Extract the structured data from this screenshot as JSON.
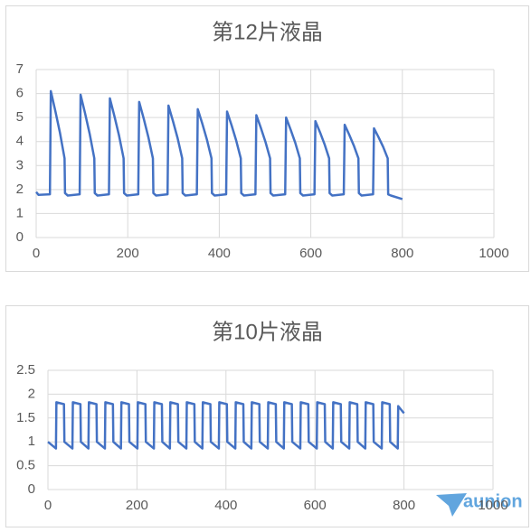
{
  "chart_data": [
    {
      "type": "line",
      "title": "第12片液晶",
      "x": [
        0,
        5,
        30,
        32,
        42,
        52,
        62,
        63,
        69,
        95,
        97,
        107,
        117,
        127,
        128,
        134,
        159,
        161,
        171,
        181,
        191,
        192,
        198,
        223,
        225,
        235,
        245,
        255,
        256,
        262,
        287,
        289,
        299,
        309,
        319,
        320,
        326,
        351,
        353,
        363,
        373,
        383,
        384,
        390,
        415,
        417,
        427,
        437,
        447,
        448,
        454,
        479,
        481,
        491,
        501,
        511,
        512,
        518,
        544,
        546,
        556,
        566,
        576,
        577,
        583,
        608,
        610,
        620,
        630,
        640,
        641,
        647,
        672,
        674,
        684,
        694,
        704,
        705,
        711,
        736,
        738,
        748,
        758,
        768,
        769,
        775,
        800
      ],
      "series": [
        {
          "color": "#4472c4",
          "values": [
            1.9,
            1.78,
            1.8,
            6.1,
            5.26,
            4.36,
            3.3,
            1.85,
            1.75,
            1.8,
            5.95,
            5.16,
            4.31,
            3.3,
            1.85,
            1.75,
            1.8,
            5.8,
            5.05,
            4.25,
            3.3,
            1.85,
            1.75,
            1.8,
            5.65,
            4.95,
            4.19,
            3.3,
            1.85,
            1.75,
            1.8,
            5.5,
            4.84,
            4.14,
            3.3,
            1.85,
            1.75,
            1.8,
            5.35,
            4.74,
            4.08,
            3.3,
            1.85,
            1.75,
            1.8,
            5.25,
            4.67,
            4.04,
            3.3,
            1.85,
            1.75,
            1.8,
            5.1,
            4.56,
            3.98,
            3.3,
            1.85,
            1.75,
            1.8,
            5.0,
            4.49,
            3.95,
            3.3,
            1.85,
            1.75,
            1.8,
            4.85,
            4.39,
            3.89,
            3.3,
            1.85,
            1.75,
            1.8,
            4.7,
            4.28,
            3.83,
            3.3,
            1.85,
            1.75,
            1.8,
            4.55,
            4.18,
            3.78,
            3.3,
            1.8,
            1.75,
            1.6
          ]
        }
      ],
      "xlim": [
        0,
        1000
      ],
      "xticks": [
        0,
        200,
        400,
        600,
        800,
        1000
      ],
      "ylim": [
        0,
        7
      ],
      "yticks": [
        0,
        1,
        2,
        3,
        4,
        5,
        6,
        7
      ],
      "grid": true
    },
    {
      "type": "line",
      "title": "第10片液晶",
      "x": [
        0,
        18,
        19,
        36,
        37,
        55,
        56,
        73,
        74,
        91,
        92,
        109,
        110,
        128,
        129,
        146,
        147,
        164,
        165,
        182,
        183,
        201,
        202,
        219,
        220,
        238,
        239,
        256,
        257,
        274,
        275,
        292,
        293,
        311,
        312,
        329,
        330,
        347,
        348,
        365,
        366,
        384,
        385,
        402,
        403,
        421,
        422,
        439,
        440,
        457,
        458,
        475,
        476,
        494,
        495,
        512,
        513,
        530,
        531,
        548,
        549,
        567,
        568,
        585,
        586,
        604,
        605,
        622,
        623,
        640,
        641,
        658,
        659,
        677,
        678,
        695,
        696,
        713,
        714,
        731,
        732,
        750,
        751,
        768,
        769,
        786,
        787,
        800
      ],
      "series": [
        {
          "color": "#4472c4",
          "values": [
            1.0,
            0.86,
            1.83,
            1.79,
            1.0,
            0.86,
            1.83,
            1.79,
            1.0,
            0.86,
            1.83,
            1.79,
            1.0,
            0.86,
            1.83,
            1.79,
            1.0,
            0.86,
            1.83,
            1.79,
            1.0,
            0.86,
            1.83,
            1.79,
            1.0,
            0.86,
            1.83,
            1.79,
            1.0,
            0.86,
            1.83,
            1.79,
            1.0,
            0.86,
            1.83,
            1.79,
            1.0,
            0.86,
            1.83,
            1.79,
            1.0,
            0.86,
            1.83,
            1.79,
            1.0,
            0.86,
            1.83,
            1.79,
            1.0,
            0.86,
            1.83,
            1.79,
            1.0,
            0.86,
            1.83,
            1.79,
            1.0,
            0.86,
            1.83,
            1.79,
            1.0,
            0.86,
            1.83,
            1.79,
            1.0,
            0.86,
            1.83,
            1.79,
            1.0,
            0.86,
            1.83,
            1.79,
            1.0,
            0.86,
            1.83,
            1.79,
            1.0,
            0.86,
            1.83,
            1.79,
            1.0,
            0.86,
            1.83,
            1.79,
            1.0,
            0.86,
            1.75,
            1.6
          ]
        }
      ],
      "xlim": [
        0,
        1000
      ],
      "xticks": [
        0,
        200,
        400,
        600,
        800,
        1000
      ],
      "ylim": [
        0,
        2.5
      ],
      "yticks": [
        0,
        0.5,
        1,
        1.5,
        2,
        2.5
      ],
      "grid": true
    }
  ],
  "watermark": "aunion"
}
